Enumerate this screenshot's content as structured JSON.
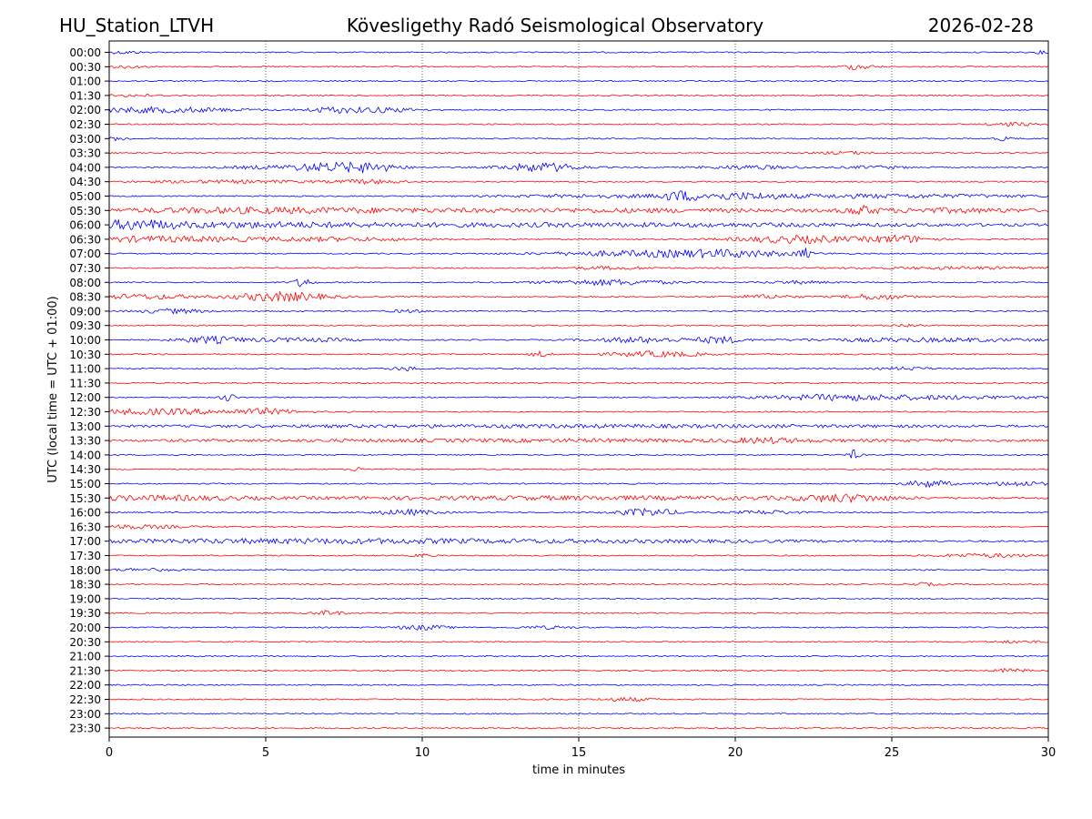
{
  "header": {
    "station": "HU_Station_LTVH",
    "observatory": "Kövesligethy Radó Seismological Observatory",
    "date": "2026-02-28"
  },
  "chart_data": {
    "type": "line",
    "title": "Kövesligethy Radó Seismological Observatory",
    "xlabel": "time in minutes",
    "ylabel": "UTC (local time = UTC + 01:00)",
    "xlim": [
      0,
      30
    ],
    "xticks": [
      0,
      5,
      10,
      15,
      20,
      25,
      30
    ],
    "grid": "vertical dotted at each x tick",
    "trace_colors": [
      "#0000ff",
      "#ff0000"
    ],
    "rows": [
      {
        "label": "00:00",
        "activity": [
          [
            0.5,
            0.5,
            1.5
          ],
          [
            29.8,
            0.2,
            1.5
          ]
        ]
      },
      {
        "label": "00:30",
        "activity": [
          [
            0.5,
            0.6,
            1.5
          ],
          [
            23.9,
            0.5,
            3
          ]
        ]
      },
      {
        "label": "01:00",
        "activity": []
      },
      {
        "label": "01:30",
        "activity": [
          [
            0.8,
            0.8,
            1.2
          ]
        ]
      },
      {
        "label": "02:00",
        "activity": [
          [
            1.5,
            2.5,
            3
          ],
          [
            7.2,
            0.9,
            3
          ],
          [
            8.8,
            1,
            2.5
          ]
        ]
      },
      {
        "label": "02:30",
        "activity": [
          [
            28.8,
            0.7,
            2
          ]
        ]
      },
      {
        "label": "03:00",
        "activity": [
          [
            0.3,
            0.3,
            2
          ],
          [
            28.6,
            0.3,
            2
          ]
        ]
      },
      {
        "label": "03:30",
        "activity": [
          [
            23.5,
            0.8,
            1.5
          ]
        ]
      },
      {
        "label": "04:00",
        "activity": [
          [
            5,
            1.5,
            1.5
          ],
          [
            6.8,
            1,
            4
          ],
          [
            8.3,
            1,
            5
          ],
          [
            13.8,
            1.2,
            5
          ],
          [
            20.5,
            1.5,
            2
          ],
          [
            24.5,
            1,
            1.5
          ]
        ]
      },
      {
        "label": "04:30",
        "activity": [
          [
            4,
            3,
            1.5
          ],
          [
            8.3,
            1,
            2
          ]
        ]
      },
      {
        "label": "05:00",
        "activity": [
          [
            15.5,
            3,
            1.5
          ],
          [
            18.2,
            0.6,
            4
          ],
          [
            20,
            1.5,
            3
          ],
          [
            24.8,
            5,
            2
          ]
        ]
      },
      {
        "label": "05:30",
        "activity": [
          [
            5,
            6,
            3.2
          ],
          [
            17,
            6,
            2
          ],
          [
            24,
            0.5,
            4
          ],
          [
            27,
            3,
            2.5
          ]
        ]
      },
      {
        "label": "06:00",
        "activity": [
          [
            0.8,
            1.2,
            4
          ],
          [
            15,
            15,
            2
          ],
          [
            4,
            4,
            2
          ]
        ]
      },
      {
        "label": "06:30",
        "activity": [
          [
            1.5,
            3,
            3
          ],
          [
            7,
            3,
            2
          ],
          [
            22,
            2,
            4
          ],
          [
            25.3,
            1,
            4
          ]
        ]
      },
      {
        "label": "07:00",
        "activity": [
          [
            17,
            3,
            3
          ],
          [
            20,
            2,
            3
          ],
          [
            22.2,
            0.2,
            5
          ]
        ]
      },
      {
        "label": "07:30",
        "activity": [
          [
            16,
            1.5,
            1.5
          ],
          [
            27,
            3,
            1.2
          ]
        ]
      },
      {
        "label": "08:00",
        "activity": [
          [
            6.2,
            0.3,
            5
          ],
          [
            16,
            2,
            3
          ],
          [
            22,
            1,
            1.5
          ]
        ]
      },
      {
        "label": "08:30",
        "activity": [
          [
            1,
            2,
            2.5
          ],
          [
            5.5,
            1.5,
            5
          ],
          [
            21,
            1,
            2
          ],
          [
            24.5,
            1,
            3
          ]
        ]
      },
      {
        "label": "09:00",
        "activity": [
          [
            2,
            1,
            2.5
          ],
          [
            9.5,
            0.5,
            1.5
          ]
        ]
      },
      {
        "label": "09:30",
        "activity": [
          [
            25.5,
            0.5,
            1.5
          ]
        ]
      },
      {
        "label": "10:00",
        "activity": [
          [
            3.2,
            1,
            3.5
          ],
          [
            6,
            2,
            2
          ],
          [
            17,
            1.5,
            3
          ],
          [
            19.5,
            0.7,
            3.5
          ],
          [
            26,
            4,
            2
          ]
        ]
      },
      {
        "label": "10:30",
        "activity": [
          [
            13.8,
            0.3,
            3
          ],
          [
            17.5,
            1.5,
            3
          ]
        ]
      },
      {
        "label": "11:00",
        "activity": [
          [
            9.5,
            0.5,
            2
          ],
          [
            25.5,
            0.8,
            1.5
          ]
        ]
      },
      {
        "label": "11:30",
        "activity": []
      },
      {
        "label": "12:00",
        "activity": [
          [
            3.8,
            0.2,
            5
          ],
          [
            23,
            2,
            2
          ],
          [
            26,
            4,
            2
          ]
        ]
      },
      {
        "label": "12:30",
        "activity": [
          [
            1.5,
            3,
            3
          ],
          [
            5,
            1,
            2.5
          ]
        ]
      },
      {
        "label": "13:00",
        "activity": [
          [
            15,
            15,
            1.5
          ]
        ]
      },
      {
        "label": "13:30",
        "activity": [
          [
            15,
            15,
            1.5
          ],
          [
            21,
            1,
            2
          ]
        ]
      },
      {
        "label": "14:00",
        "activity": [
          [
            23.8,
            0.2,
            5
          ]
        ]
      },
      {
        "label": "14:30",
        "activity": [
          [
            8,
            0.3,
            2
          ]
        ]
      },
      {
        "label": "15:00",
        "activity": [
          [
            26.2,
            0.7,
            4
          ],
          [
            29,
            1,
            2.5
          ]
        ]
      },
      {
        "label": "15:30",
        "activity": [
          [
            1.5,
            3,
            2.5
          ],
          [
            15,
            10,
            2
          ],
          [
            23.5,
            1.5,
            3.5
          ]
        ]
      },
      {
        "label": "16:00",
        "activity": [
          [
            9.5,
            1,
            3
          ],
          [
            17.2,
            1,
            4
          ],
          [
            21,
            1,
            2
          ]
        ]
      },
      {
        "label": "16:30",
        "activity": [
          [
            0.5,
            2,
            2
          ]
        ]
      },
      {
        "label": "17:00",
        "activity": [
          [
            5,
            7,
            2
          ],
          [
            15,
            10,
            1.5
          ]
        ]
      },
      {
        "label": "17:30",
        "activity": [
          [
            10,
            0.3,
            2
          ],
          [
            28,
            1.5,
            2
          ]
        ]
      },
      {
        "label": "18:00",
        "activity": [
          [
            1,
            1,
            1.5
          ]
        ]
      },
      {
        "label": "18:30",
        "activity": [
          [
            26,
            0.5,
            1.5
          ]
        ]
      },
      {
        "label": "19:00",
        "activity": []
      },
      {
        "label": "19:30",
        "activity": [
          [
            7,
            0.5,
            2.5
          ]
        ]
      },
      {
        "label": "20:00",
        "activity": [
          [
            10,
            0.8,
            2.5
          ],
          [
            14,
            0.8,
            1.5
          ]
        ]
      },
      {
        "label": "20:30",
        "activity": [
          [
            29,
            0.8,
            1.2
          ]
        ]
      },
      {
        "label": "21:00",
        "activity": []
      },
      {
        "label": "21:30",
        "activity": [
          [
            28.8,
            0.5,
            2
          ]
        ]
      },
      {
        "label": "22:00",
        "activity": []
      },
      {
        "label": "22:30",
        "activity": [
          [
            14,
            0.3,
            1.5
          ],
          [
            16.5,
            0.8,
            2
          ]
        ]
      },
      {
        "label": "23:00",
        "activity": []
      },
      {
        "label": "23:30",
        "activity": []
      }
    ]
  }
}
